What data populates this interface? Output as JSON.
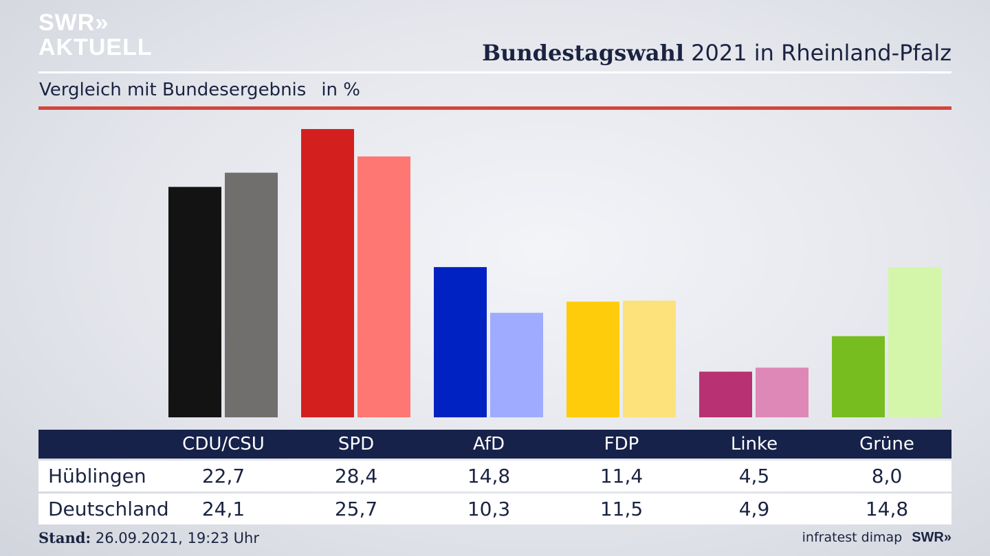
{
  "logo": {
    "line1": "SWR»",
    "line2": "AKTUELL"
  },
  "header": {
    "title_bold": "Bundestagswahl",
    "title_rest": "2021 in Rheinland-Pfalz"
  },
  "subtitle": {
    "text": "Vergleich mit Bundesergebnis",
    "unit": "in %"
  },
  "chart_data": {
    "type": "bar",
    "categories": [
      "CDU/CSU",
      "SPD",
      "AfD",
      "FDP",
      "Linke",
      "Grüne"
    ],
    "series": [
      {
        "name": "Hüblingen",
        "values": [
          22.7,
          28.4,
          14.8,
          11.4,
          4.5,
          8.0
        ]
      },
      {
        "name": "Deutschland",
        "values": [
          24.1,
          25.7,
          10.3,
          11.5,
          4.9,
          14.8
        ]
      }
    ],
    "series_colors": [
      [
        "#131313",
        "#d41f1f",
        "#0022c3",
        "#fecc0b",
        "#b83172",
        "#77bd20"
      ],
      [
        "#706f6d",
        "#ff7772",
        "#9fabff",
        "#fde17a",
        "#de88b8",
        "#d4f6aa"
      ]
    ],
    "ylim": [
      0,
      28.4
    ],
    "grid": false,
    "legend": "table-bottom"
  },
  "table": {
    "headers": [
      "CDU/CSU",
      "SPD",
      "AfD",
      "FDP",
      "Linke",
      "Grüne"
    ],
    "rows": [
      {
        "label": "Hüblingen",
        "values": [
          "22,7",
          "28,4",
          "14,8",
          "11,4",
          "4,5",
          "8,0"
        ]
      },
      {
        "label": "Deutschland",
        "values": [
          "24,1",
          "25,7",
          "10,3",
          "11,5",
          "4,9",
          "14,8"
        ]
      }
    ]
  },
  "footer": {
    "stand_label": "Stand:",
    "stand_value": "26.09.2021, 19:23 Uhr",
    "source": "infratest dimap",
    "brand": "SWR»"
  }
}
